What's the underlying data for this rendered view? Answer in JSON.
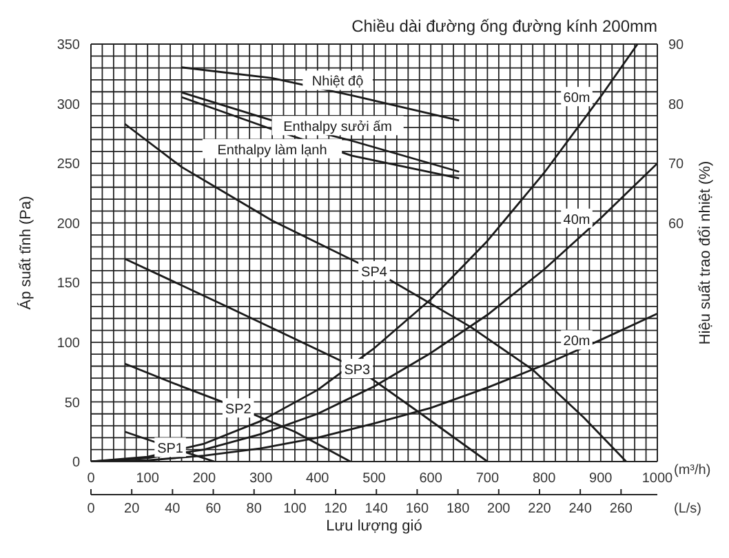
{
  "chart_data": {
    "type": "line",
    "title": "Chiều dài đường ống đường kính 200mm",
    "xlabel": "Lưu lượng gió",
    "ylabel": "Áp suất tĩnh (Pa)",
    "y2label": "Hiệu suất trao đổi nhiệt (%)",
    "x2label": "(L/s)",
    "annotations": [
      "(m³/h)"
    ],
    "xlim": [
      0,
      1000
    ],
    "xticks": [
      0,
      {
        "value": 20,
        "label": null
      },
      {
        "value": 40,
        "label": null
      },
      {
        "value": 60,
        "label": null
      },
      {
        "value": 80,
        "label": null
      },
      100,
      {
        "value": 120,
        "label": null
      },
      {
        "value": 140,
        "label": null
      },
      {
        "value": 160,
        "label": null
      },
      {
        "value": 180,
        "label": null
      },
      200,
      {
        "value": 220,
        "label": null
      },
      {
        "value": 240,
        "label": null
      },
      {
        "value": 260,
        "label": null
      },
      {
        "value": 280,
        "label": null
      },
      300,
      {
        "value": 320,
        "label": null
      },
      {
        "value": 340,
        "label": null
      },
      {
        "value": 360,
        "label": null
      },
      {
        "value": 380,
        "label": null
      },
      400,
      {
        "value": 420,
        "label": null
      },
      {
        "value": 440,
        "label": null
      },
      {
        "value": 460,
        "label": null
      },
      {
        "value": 480,
        "label": null
      },
      500,
      {
        "value": 520,
        "label": null
      },
      {
        "value": 540,
        "label": null
      },
      {
        "value": 560,
        "label": null
      },
      {
        "value": 580,
        "label": null
      },
      600,
      {
        "value": 620,
        "label": null
      },
      {
        "value": 640,
        "label": null
      },
      {
        "value": 660,
        "label": null
      },
      {
        "value": 680,
        "label": null
      },
      700,
      {
        "value": 720,
        "label": null
      },
      {
        "value": 740,
        "label": null
      },
      {
        "value": 760,
        "label": null
      },
      {
        "value": 780,
        "label": null
      },
      800,
      {
        "value": 820,
        "label": null
      },
      {
        "value": 840,
        "label": null
      },
      {
        "value": 860,
        "label": null
      },
      {
        "value": 880,
        "label": null
      },
      900,
      {
        "value": 920,
        "label": null
      },
      {
        "value": 940,
        "label": null
      },
      {
        "value": 960,
        "label": null
      },
      {
        "value": 980,
        "label": null
      },
      1000
    ],
    "ylim": [
      0,
      350
    ],
    "yticks": [
      0,
      {
        "value": 10,
        "label": null
      },
      {
        "value": 20,
        "label": null
      },
      {
        "value": 30,
        "label": null
      },
      {
        "value": 40,
        "label": null
      },
      50,
      {
        "value": 60,
        "label": null
      },
      {
        "value": 70,
        "label": null
      },
      {
        "value": 80,
        "label": null
      },
      {
        "value": 90,
        "label": null
      },
      100,
      {
        "value": 110,
        "label": null
      },
      {
        "value": 120,
        "label": null
      },
      {
        "value": 130,
        "label": null
      },
      {
        "value": 140,
        "label": null
      },
      150,
      {
        "value": 160,
        "label": null
      },
      {
        "value": 170,
        "label": null
      },
      {
        "value": 180,
        "label": null
      },
      {
        "value": 190,
        "label": null
      },
      200,
      {
        "value": 210,
        "label": null
      },
      {
        "value": 220,
        "label": null
      },
      {
        "value": 230,
        "label": null
      },
      {
        "value": 240,
        "label": null
      },
      250,
      {
        "value": 260,
        "label": null
      },
      {
        "value": 270,
        "label": null
      },
      {
        "value": 280,
        "label": null
      },
      {
        "value": 290,
        "label": null
      },
      300,
      {
        "value": 310,
        "label": null
      },
      {
        "value": 320,
        "label": null
      },
      {
        "value": 330,
        "label": null
      },
      {
        "value": 340,
        "label": null
      },
      350
    ],
    "y2lim": [
      20,
      90
    ],
    "y2ticks": [
      60,
      70,
      80,
      90
    ],
    "x2lim": [
      0,
      277.8
    ],
    "x2ticks": [
      0,
      20,
      40,
      60,
      80,
      100,
      120,
      140,
      160,
      180,
      200,
      220,
      240,
      260
    ],
    "grid": true,
    "legend": false,
    "marker": "none",
    "line_style": "solid",
    "series": [
      {
        "name": "Nhiệt độ",
        "color": "#1a1a1a",
        "axis": "y2",
        "x": [
          160,
          320,
          460,
          650
        ],
        "values": [
          86.1,
          84.3,
          81.4,
          77.2
        ]
      },
      {
        "name": "Enthalpy sưởi ấm",
        "color": "#1a1a1a",
        "axis": "y2",
        "x": [
          160,
          320,
          460,
          650
        ],
        "values": [
          81.9,
          77.2,
          73.8,
          68.6
        ]
      },
      {
        "name": "Enthalpy làm lạnh",
        "color": "#1a1a1a",
        "axis": "y2",
        "x": [
          160,
          320,
          460,
          650
        ],
        "values": [
          81.1,
          75.7,
          71.3,
          67.5
        ]
      },
      {
        "name": "SP4",
        "color": "#1a1a1a",
        "x": [
          60,
          160,
          320,
          500,
          670,
          780,
          870,
          945
        ],
        "values": [
          283,
          247,
          202,
          160,
          113,
          77,
          37,
          0
        ]
      },
      {
        "name": "SP3",
        "color": "#1a1a1a",
        "x": [
          60,
          240,
          470,
          580,
          700
        ],
        "values": [
          170,
          130,
          78,
          41,
          0
        ]
      },
      {
        "name": "SP2",
        "color": "#1a1a1a",
        "x": [
          60,
          160,
          260,
          360,
          458
        ],
        "values": [
          82,
          63,
          45,
          25,
          0
        ]
      },
      {
        "name": "SP1",
        "color": "#1a1a1a",
        "x": [
          60,
          140,
          218
        ],
        "values": [
          25,
          12,
          0
        ]
      },
      {
        "name": "20m",
        "color": "#1a1a1a",
        "x": [
          0,
          100,
          200,
          300,
          400,
          500,
          600,
          700,
          800,
          900,
          1000
        ],
        "values": [
          0,
          1,
          5,
          11,
          20,
          32,
          45,
          62,
          81,
          102,
          124
        ]
      },
      {
        "name": "40m",
        "color": "#1a1a1a",
        "x": [
          0,
          100,
          200,
          300,
          400,
          500,
          600,
          700,
          800,
          900,
          1000
        ],
        "values": [
          0,
          3,
          10,
          23,
          40,
          63,
          91,
          123,
          161,
          204,
          250
        ]
      },
      {
        "name": "60m",
        "color": "#1a1a1a",
        "x": [
          0,
          100,
          200,
          300,
          400,
          500,
          600,
          700,
          800,
          900,
          965
        ],
        "values": [
          0,
          4,
          15,
          34,
          60,
          95,
          136,
          185,
          242,
          306,
          350
        ]
      }
    ]
  }
}
